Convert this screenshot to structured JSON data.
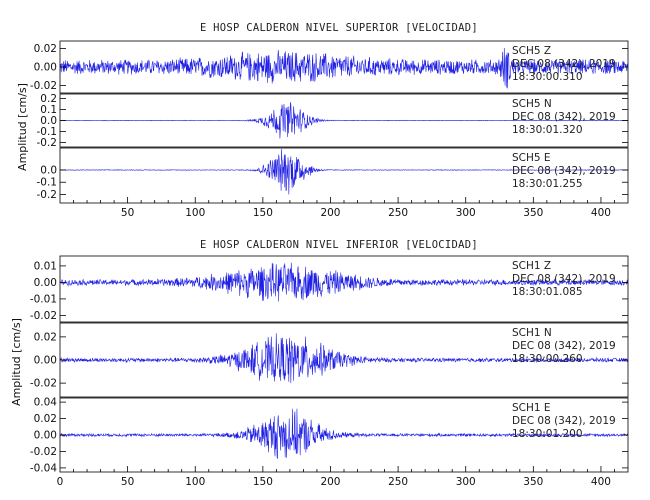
{
  "colors": {
    "trace": "#1f1fe6",
    "axis": "#000000",
    "text": "#222222"
  },
  "chart_data": [
    {
      "type": "line",
      "title": "E HOSP CALDERON NIVEL SUPERIOR [VELOCIDAD]",
      "ylabel": "Amplitud [cm/s]",
      "xlim": [
        0,
        420
      ],
      "x_ticks": [
        "50",
        "100",
        "150",
        "200",
        "250",
        "300",
        "350",
        "400"
      ],
      "panels": [
        {
          "yticks": [
            "0.02",
            "0.00",
            "-0.02"
          ],
          "ylim": [
            -0.028,
            0.028
          ],
          "station": "SCH5  Z",
          "date": "DEC 08 (342), 2019",
          "time": "18:30:00.310",
          "envelope": {
            "base": 0.009,
            "peak": 0.02,
            "center": 165,
            "width": 55,
            "pulse": [
              330,
              0.018,
              4
            ]
          }
        },
        {
          "yticks": [
            "0.2",
            "0.1",
            "0.0",
            "-0.1",
            "-0.2"
          ],
          "ylim": [
            -0.24,
            0.24
          ],
          "station": "SCH5  N",
          "date": "DEC 08 (342), 2019",
          "time": "18:30:01.320",
          "envelope": {
            "base": 0.003,
            "peak": 0.2,
            "center": 168,
            "width": 15
          }
        },
        {
          "yticks": [
            "0.0",
            "-0.1",
            "-0.2"
          ],
          "ylim": [
            -0.27,
            0.18
          ],
          "station": "SCH5  E",
          "date": "DEC 08 (342), 2019",
          "time": "18:30:01.255",
          "envelope": {
            "base": 0.003,
            "peak": 0.22,
            "center": 168,
            "width": 14
          }
        }
      ]
    },
    {
      "type": "line",
      "title": "E HOSP CALDERON NIVEL INFERIOR [VELOCIDAD]",
      "ylabel": "Amplitud [cm/s]",
      "xlim": [
        0,
        420
      ],
      "x_ticks": [
        "0",
        "50",
        "100",
        "150",
        "200",
        "250",
        "300",
        "350",
        "400"
      ],
      "panels": [
        {
          "yticks": [
            "0.01",
            "0.00",
            "-0.01",
            "-0.02"
          ],
          "ylim": [
            -0.024,
            0.016
          ],
          "station": "SCH1  Z",
          "date": "DEC 08 (342), 2019",
          "time": "18:30:01.085",
          "envelope": {
            "base": 0.002,
            "peak": 0.013,
            "center": 165,
            "width": 50
          }
        },
        {
          "yticks": [
            "0.02",
            "0.00",
            "-0.02"
          ],
          "ylim": [
            -0.032,
            0.032
          ],
          "station": "SCH1  N",
          "date": "DEC 08 (342), 2019",
          "time": "18:30:00.260",
          "envelope": {
            "base": 0.002,
            "peak": 0.025,
            "center": 168,
            "width": 35
          }
        },
        {
          "yticks": [
            "0.04",
            "0.02",
            "0.00",
            "-0.02",
            "-0.04"
          ],
          "ylim": [
            -0.045,
            0.045
          ],
          "station": "SCH1  E",
          "date": "DEC 08 (342), 2019",
          "time": "18:30:01.200",
          "envelope": {
            "base": 0.002,
            "peak": 0.035,
            "center": 168,
            "width": 25
          }
        }
      ]
    }
  ]
}
